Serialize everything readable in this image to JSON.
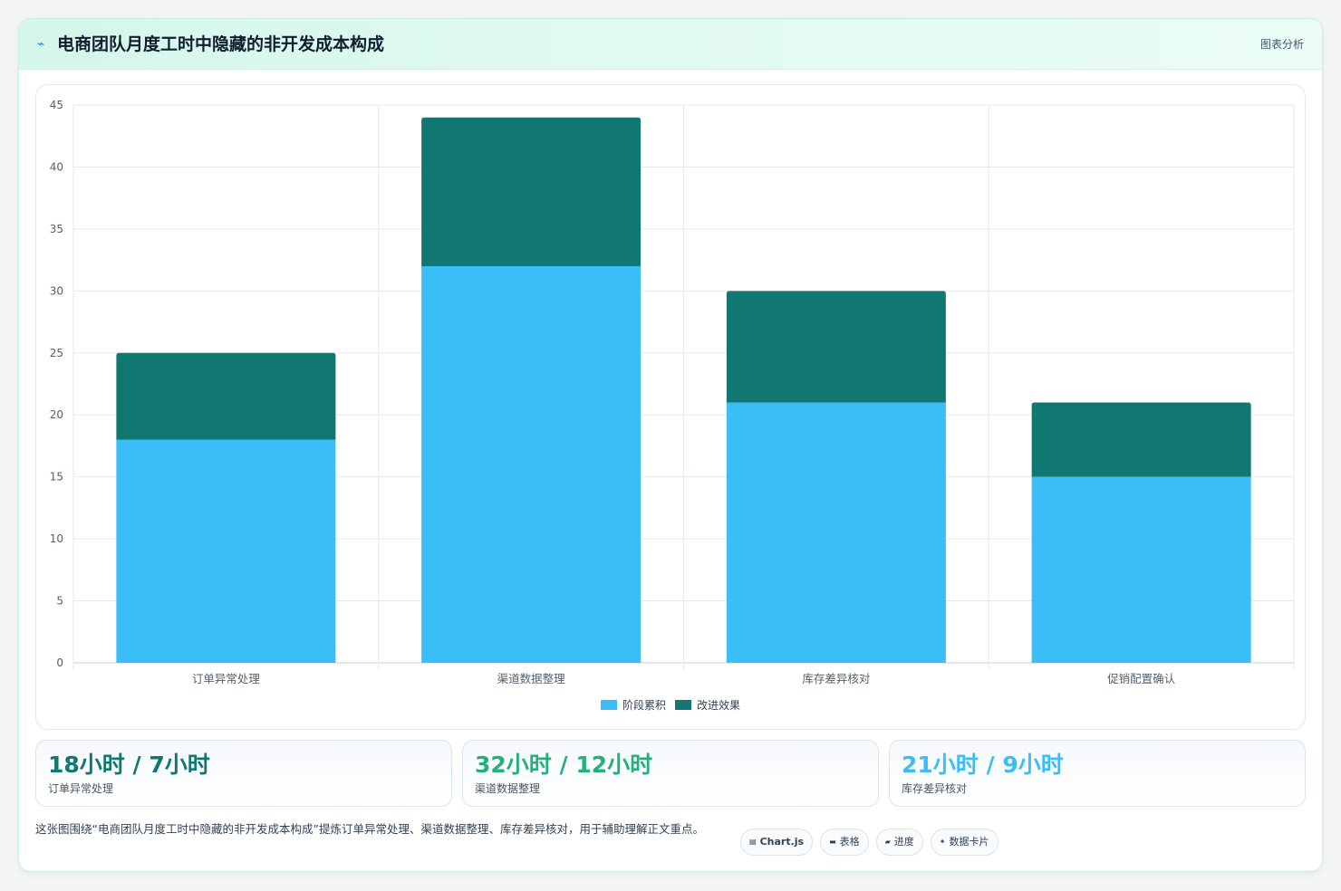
{
  "header": {
    "icon": "sparkle-icon",
    "title": "电商团队月度工时中隐藏的非开发成本构成",
    "link_label": "图表分析"
  },
  "colors": {
    "series_stage": "#3bbdf7",
    "series_improve": "#107870",
    "stat_1": "#107870",
    "stat_2": "#22b07d",
    "stat_3": "#3bbdf7"
  },
  "chart_data": {
    "type": "bar",
    "stacked": true,
    "categories": [
      "订单异常处理",
      "渠道数据整理",
      "库存差异核对",
      "促销配置确认"
    ],
    "series": [
      {
        "name": "阶段累积",
        "values": [
          18,
          32,
          21,
          15
        ]
      },
      {
        "name": "改进效果",
        "values": [
          7,
          12,
          9,
          6
        ]
      }
    ],
    "title": "",
    "xlabel": "",
    "ylabel": "",
    "ylim": [
      0,
      45
    ],
    "yticks": [
      0,
      5,
      10,
      15,
      20,
      25,
      30,
      35,
      40,
      45
    ],
    "grid": true,
    "legend_position": "bottom"
  },
  "stats": [
    {
      "value": "18小时 / 7小时",
      "label": "订单异常处理"
    },
    {
      "value": "32小时 / 12小时",
      "label": "渠道数据整理"
    },
    {
      "value": "21小时 / 9小时",
      "label": "库存差异核对"
    }
  ],
  "footer": {
    "note": "这张图围绕“电商团队月度工时中隐藏的非开发成本构成”提炼订单异常处理、渠道数据整理、库存差异核对，用于辅助理解正文重点。"
  },
  "tags": [
    {
      "icon": "chart-icon",
      "label": "Chart.js"
    },
    {
      "icon": "table-icon",
      "label": "表格"
    },
    {
      "icon": "progress-icon",
      "label": "进度"
    },
    {
      "icon": "card-icon",
      "label": "数据卡片"
    }
  ]
}
